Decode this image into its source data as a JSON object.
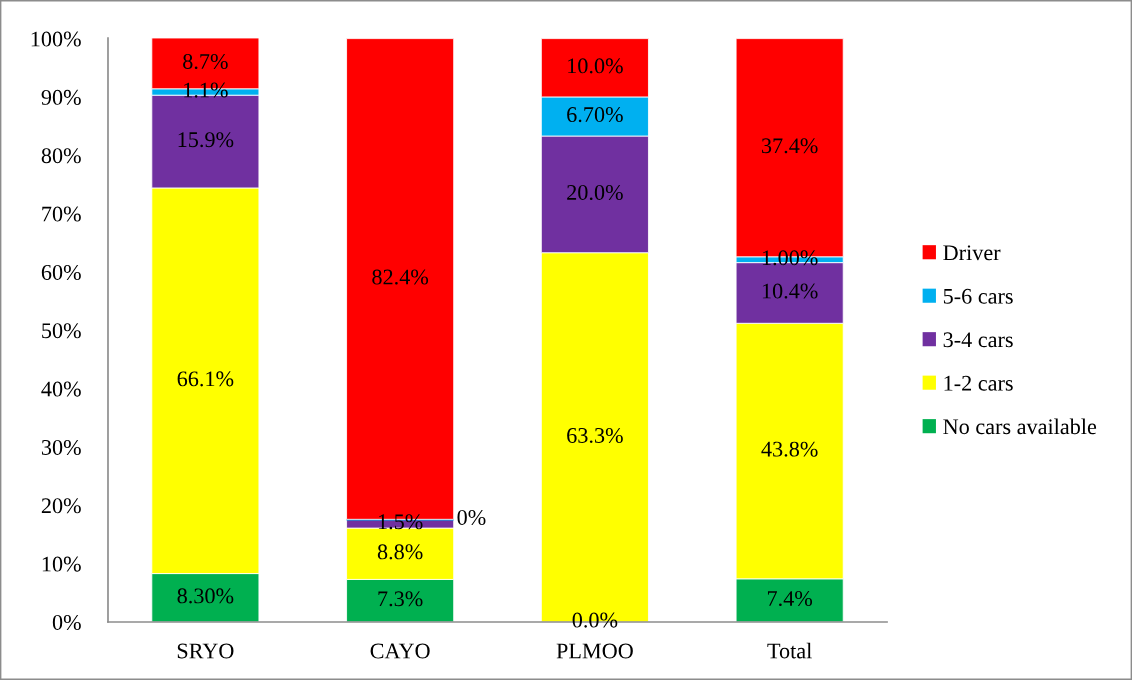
{
  "chart_data": {
    "type": "bar",
    "stacked": true,
    "categories": [
      "SRYO",
      "CAYO",
      "PLMOO",
      "Total"
    ],
    "series": [
      {
        "name": "No cars available",
        "color": "#00b050",
        "values": [
          8.3,
          7.3,
          0.0,
          7.4
        ],
        "value_labels": [
          "8.30%",
          "7.3%",
          "0.0%",
          "7.4%"
        ]
      },
      {
        "name": "1-2 cars",
        "color": "#ffff00",
        "values": [
          66.1,
          8.8,
          63.3,
          43.8
        ],
        "value_labels": [
          "66.1%",
          "8.8%",
          "63.3%",
          "43.8%"
        ]
      },
      {
        "name": "3-4 cars",
        "color": "#7030a0",
        "values": [
          15.9,
          1.5,
          20.0,
          10.4
        ],
        "value_labels": [
          "15.9%",
          "1.5%",
          "20.0%",
          "10.4%"
        ]
      },
      {
        "name": "5-6 cars",
        "color": "#00b0f0",
        "values": [
          1.1,
          0,
          6.7,
          1.0
        ],
        "value_labels": [
          "1.1%",
          "0%",
          "6.70%",
          "1.00%"
        ]
      },
      {
        "name": "Driver",
        "color": "#ff0000",
        "values": [
          8.7,
          82.4,
          10.0,
          37.4
        ],
        "value_labels": [
          "8.7%",
          "82.4%",
          "10.0%",
          "37.4%"
        ]
      }
    ],
    "ylim": [
      0,
      100.1
    ],
    "yticks": [
      {
        "value": 0,
        "label": "0%"
      },
      {
        "value": 10,
        "label": "10%"
      },
      {
        "value": 20,
        "label": "20%"
      },
      {
        "value": 30,
        "label": "30%"
      },
      {
        "value": 40,
        "label": "40%"
      },
      {
        "value": 50,
        "label": "50%"
      },
      {
        "value": 60,
        "label": "60%"
      },
      {
        "value": 70,
        "label": "70%"
      },
      {
        "value": 80,
        "label": "80%"
      },
      {
        "value": 90,
        "label": "90%"
      },
      {
        "value": 100,
        "label": "100%"
      }
    ],
    "legend": "right",
    "grid": false
  }
}
